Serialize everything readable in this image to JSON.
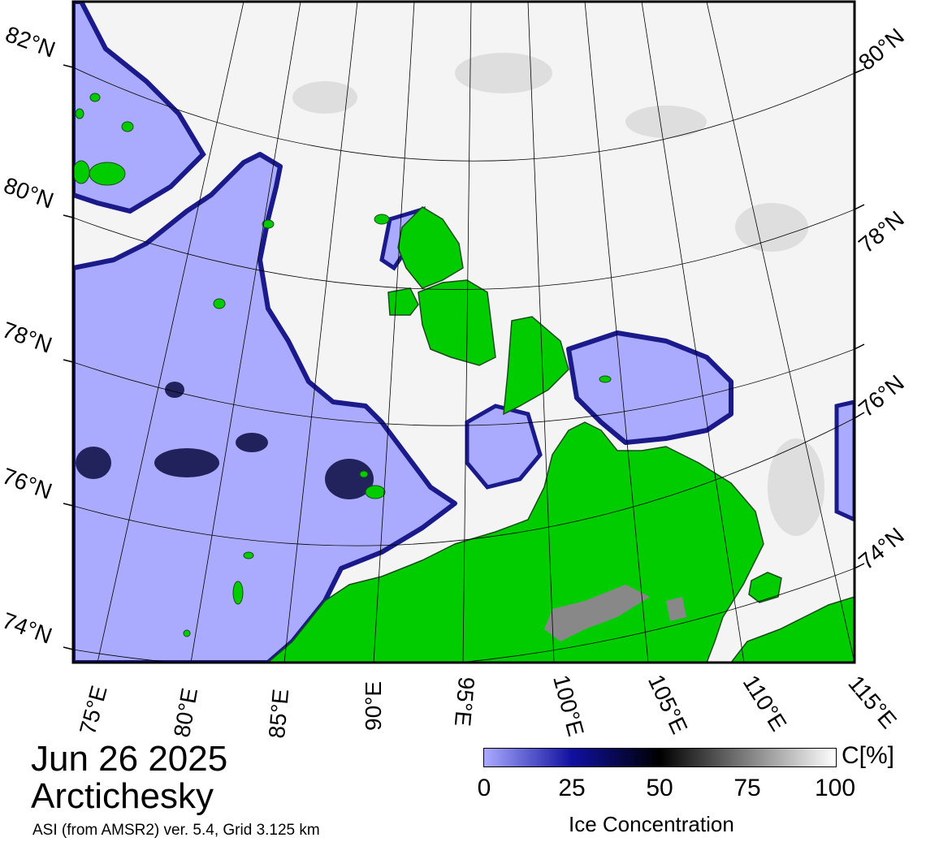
{
  "map": {
    "date": "Jun 26 2025",
    "region": "Arctichesky",
    "product": "ASI (from AMSR2) ver. 5.4,  Grid 3.125 km",
    "left_lat_labels": [
      "82°N",
      "80°N",
      "78°N",
      "76°N",
      "74°N"
    ],
    "right_lat_labels": [
      "80°N",
      "78°N",
      "76°N",
      "74°N"
    ],
    "lon_labels": [
      "75°E",
      "80°E",
      "85°E",
      "90°E",
      "95°E",
      "100°E",
      "105°E",
      "110°E",
      "115°E"
    ],
    "colors": {
      "open_water": "#aaaaff",
      "land": "#00cc00",
      "land_ice": "#808080",
      "ice_high": "#ffffff",
      "graticule": "#000000"
    }
  },
  "legend": {
    "unit": "C[%]",
    "title": "Ice Concentration",
    "ticks": [
      "0",
      "25",
      "50",
      "75",
      "100"
    ],
    "gradient": [
      "#aaaaff",
      "#1010a0",
      "#000000",
      "#808080",
      "#ffffff"
    ]
  }
}
